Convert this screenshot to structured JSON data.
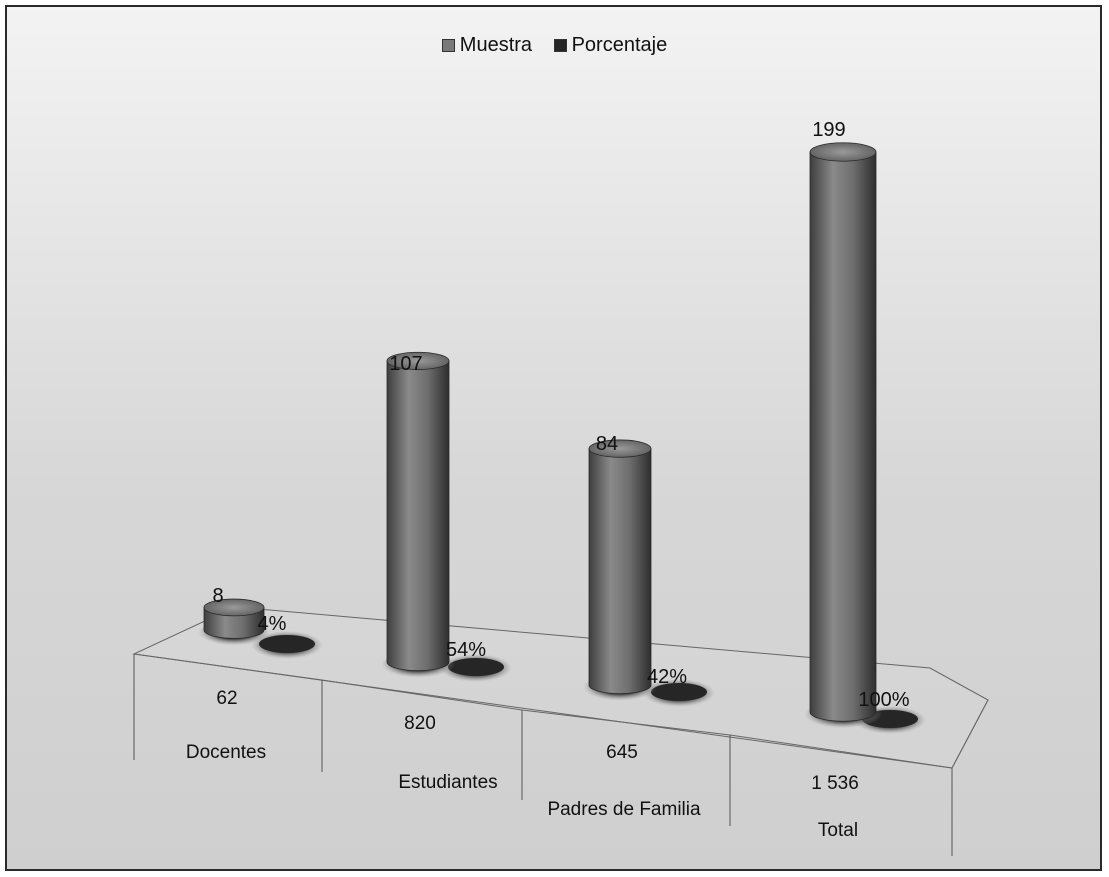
{
  "chart_data": {
    "type": "bar",
    "categories": [
      "Docentes",
      "Estudiantes",
      "Padres de Familia",
      "Total"
    ],
    "series": [
      {
        "name": "Muestra",
        "values": [
          8,
          107,
          84,
          199
        ],
        "labels": [
          "8",
          "107",
          "84",
          "199"
        ],
        "color": "#7a7a7a"
      },
      {
        "name": "Porcentaje",
        "values": [
          4,
          54,
          42,
          100
        ],
        "labels": [
          "4%",
          "54%",
          "42%",
          "100%"
        ],
        "color": "#262626"
      }
    ],
    "table_row": [
      "62",
      "820",
      "645",
      "1 536"
    ],
    "legend_position": "top-center",
    "title": "",
    "xlabel": "",
    "ylabel": "",
    "grid": false
  }
}
